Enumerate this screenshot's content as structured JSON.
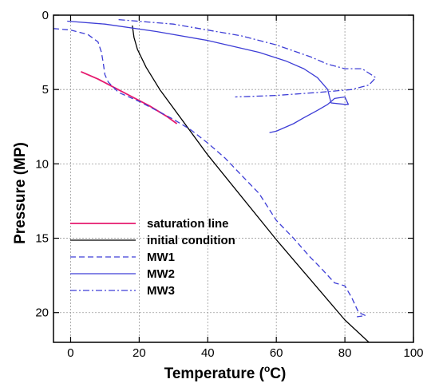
{
  "chart_data": {
    "type": "line",
    "xlabel": "Temperature (°C)",
    "xlabel_parts": {
      "main": "Temperature (",
      "sup": "o",
      "tail": "C)"
    },
    "ylabel": "Pressure (MP)",
    "xlim": [
      -5,
      100
    ],
    "ylim": [
      0,
      22
    ],
    "y_inverted": true,
    "x_ticks": [
      0,
      20,
      40,
      60,
      80,
      100
    ],
    "y_ticks": [
      0,
      5,
      10,
      15,
      20
    ],
    "x_tick_labels": [
      "0",
      "20",
      "40",
      "60",
      "80",
      "100"
    ],
    "y_tick_labels": [
      "0",
      "5",
      "10",
      "15",
      "20"
    ],
    "grid": true,
    "legend_position": "lower-left",
    "series": [
      {
        "name": "saturation line",
        "color": "#e6196e",
        "dash": "solid",
        "points": [
          [
            3,
            3.8
          ],
          [
            8,
            4.3
          ],
          [
            13,
            4.9
          ],
          [
            18,
            5.5
          ],
          [
            23,
            6.1
          ],
          [
            28,
            6.8
          ],
          [
            31,
            7.3
          ]
        ]
      },
      {
        "name": "initial condition",
        "color": "#000000",
        "dash": "solid",
        "points": [
          [
            18,
            0.7
          ],
          [
            18.5,
            1.5
          ],
          [
            19.5,
            2.3
          ],
          [
            22,
            3.5
          ],
          [
            26,
            5.0
          ],
          [
            40,
            9.4
          ],
          [
            60,
            15.1
          ],
          [
            80,
            20.5
          ],
          [
            87,
            22.0
          ]
        ]
      },
      {
        "name": "MW1",
        "color": "#3d3dd6",
        "dash": "dashed",
        "points": [
          [
            -5,
            0.9
          ],
          [
            0,
            1.0
          ],
          [
            5,
            1.3
          ],
          [
            8,
            1.8
          ],
          [
            9,
            2.5
          ],
          [
            9.5,
            3.2
          ],
          [
            10,
            4.0
          ],
          [
            11,
            4.5
          ],
          [
            14,
            5.2
          ],
          [
            20,
            5.8
          ],
          [
            25,
            6.4
          ],
          [
            30,
            7.0
          ],
          [
            35,
            7.7
          ],
          [
            40,
            8.6
          ],
          [
            45,
            9.6
          ],
          [
            50,
            10.8
          ],
          [
            55,
            12.0
          ],
          [
            60,
            13.8
          ],
          [
            65,
            15.0
          ],
          [
            70,
            16.3
          ],
          [
            73,
            17.0
          ],
          [
            77,
            18.0
          ],
          [
            80,
            18.2
          ],
          [
            82,
            19.0
          ],
          [
            84,
            20.0
          ],
          [
            86,
            20.2
          ],
          [
            83,
            20.3
          ]
        ]
      },
      {
        "name": "MW2",
        "color": "#3d3dd6",
        "dash": "solid",
        "points": [
          [
            -1,
            0.4
          ],
          [
            10,
            0.6
          ],
          [
            25,
            1.1
          ],
          [
            40,
            1.7
          ],
          [
            55,
            2.5
          ],
          [
            63,
            3.1
          ],
          [
            68,
            3.6
          ],
          [
            72,
            4.2
          ],
          [
            75,
            5.0
          ],
          [
            75.5,
            5.5
          ],
          [
            76,
            5.9
          ],
          [
            80,
            6.0
          ],
          [
            81,
            6.0
          ],
          [
            80,
            5.5
          ],
          [
            77,
            5.6
          ],
          [
            75,
            6.0
          ],
          [
            72,
            6.4
          ],
          [
            68,
            6.9
          ],
          [
            65,
            7.3
          ],
          [
            62,
            7.6
          ],
          [
            60,
            7.8
          ],
          [
            58,
            7.9
          ]
        ]
      },
      {
        "name": "MW3",
        "color": "#3d3dd6",
        "dash": "dashdot",
        "points": [
          [
            14,
            0.3
          ],
          [
            30,
            0.6
          ],
          [
            50,
            1.4
          ],
          [
            60,
            2.0
          ],
          [
            70,
            2.8
          ],
          [
            75,
            3.3
          ],
          [
            80,
            3.6
          ],
          [
            85,
            3.6
          ],
          [
            89,
            4.2
          ],
          [
            87,
            4.7
          ],
          [
            82,
            5.0
          ],
          [
            72,
            5.2
          ],
          [
            60,
            5.4
          ],
          [
            48,
            5.5
          ]
        ]
      }
    ]
  }
}
